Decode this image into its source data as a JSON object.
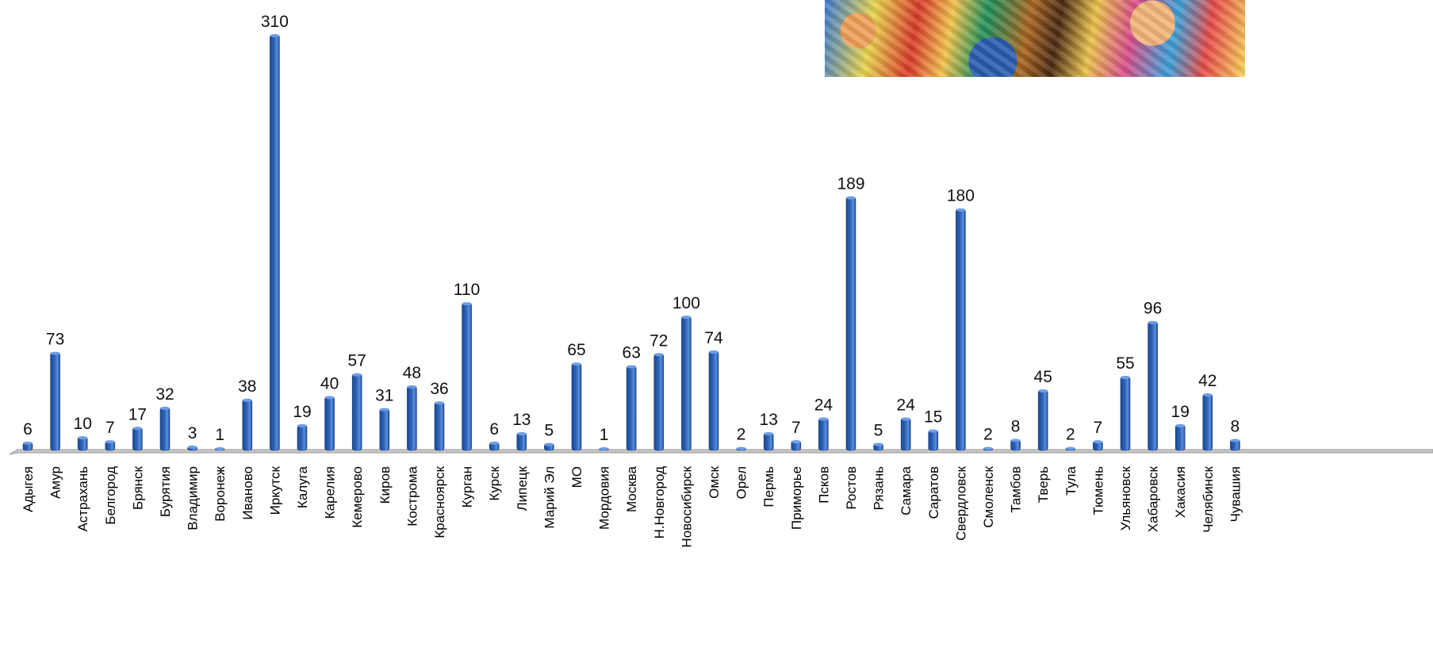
{
  "chart_data": {
    "type": "bar",
    "title": "",
    "xlabel": "",
    "ylabel": "",
    "ylim": [
      0,
      310
    ],
    "grid": false,
    "bar_color": "#2e63b8",
    "categories": [
      "Адыгея",
      "Амур",
      "Астрахань",
      "Белгород",
      "Брянск",
      "Бурятия",
      "Владимир",
      "Воронеж",
      "Иваново",
      "Иркутск",
      "Калуга",
      "Карелия",
      "Кемерово",
      "Киров",
      "Кострома",
      "Красноярск",
      "Курган",
      "Курск",
      "Липецк",
      "Марий Эл",
      "МО",
      "Мордовия",
      "Москва",
      "Н.Новгород",
      "Новосибирск",
      "Омск",
      "Орел",
      "Пермь",
      "Приморье",
      "Псков",
      "Ростов",
      "Рязань",
      "Самара",
      "Саратов",
      "Свердловск",
      "Смоленск",
      "Тамбов",
      "Тверь",
      "Тула",
      "Тюмень",
      "Ульяновск",
      "Хабаровск",
      "Хакасия",
      "Челябинск",
      "Чувашия"
    ],
    "values": [
      6,
      73,
      10,
      7,
      17,
      32,
      3,
      1,
      38,
      310,
      19,
      40,
      57,
      31,
      48,
      36,
      110,
      6,
      13,
      5,
      65,
      1,
      63,
      72,
      100,
      74,
      2,
      13,
      7,
      24,
      189,
      5,
      24,
      15,
      180,
      2,
      8,
      45,
      2,
      7,
      55,
      96,
      19,
      42,
      8
    ]
  },
  "decor": {
    "painting": "painting-image"
  }
}
